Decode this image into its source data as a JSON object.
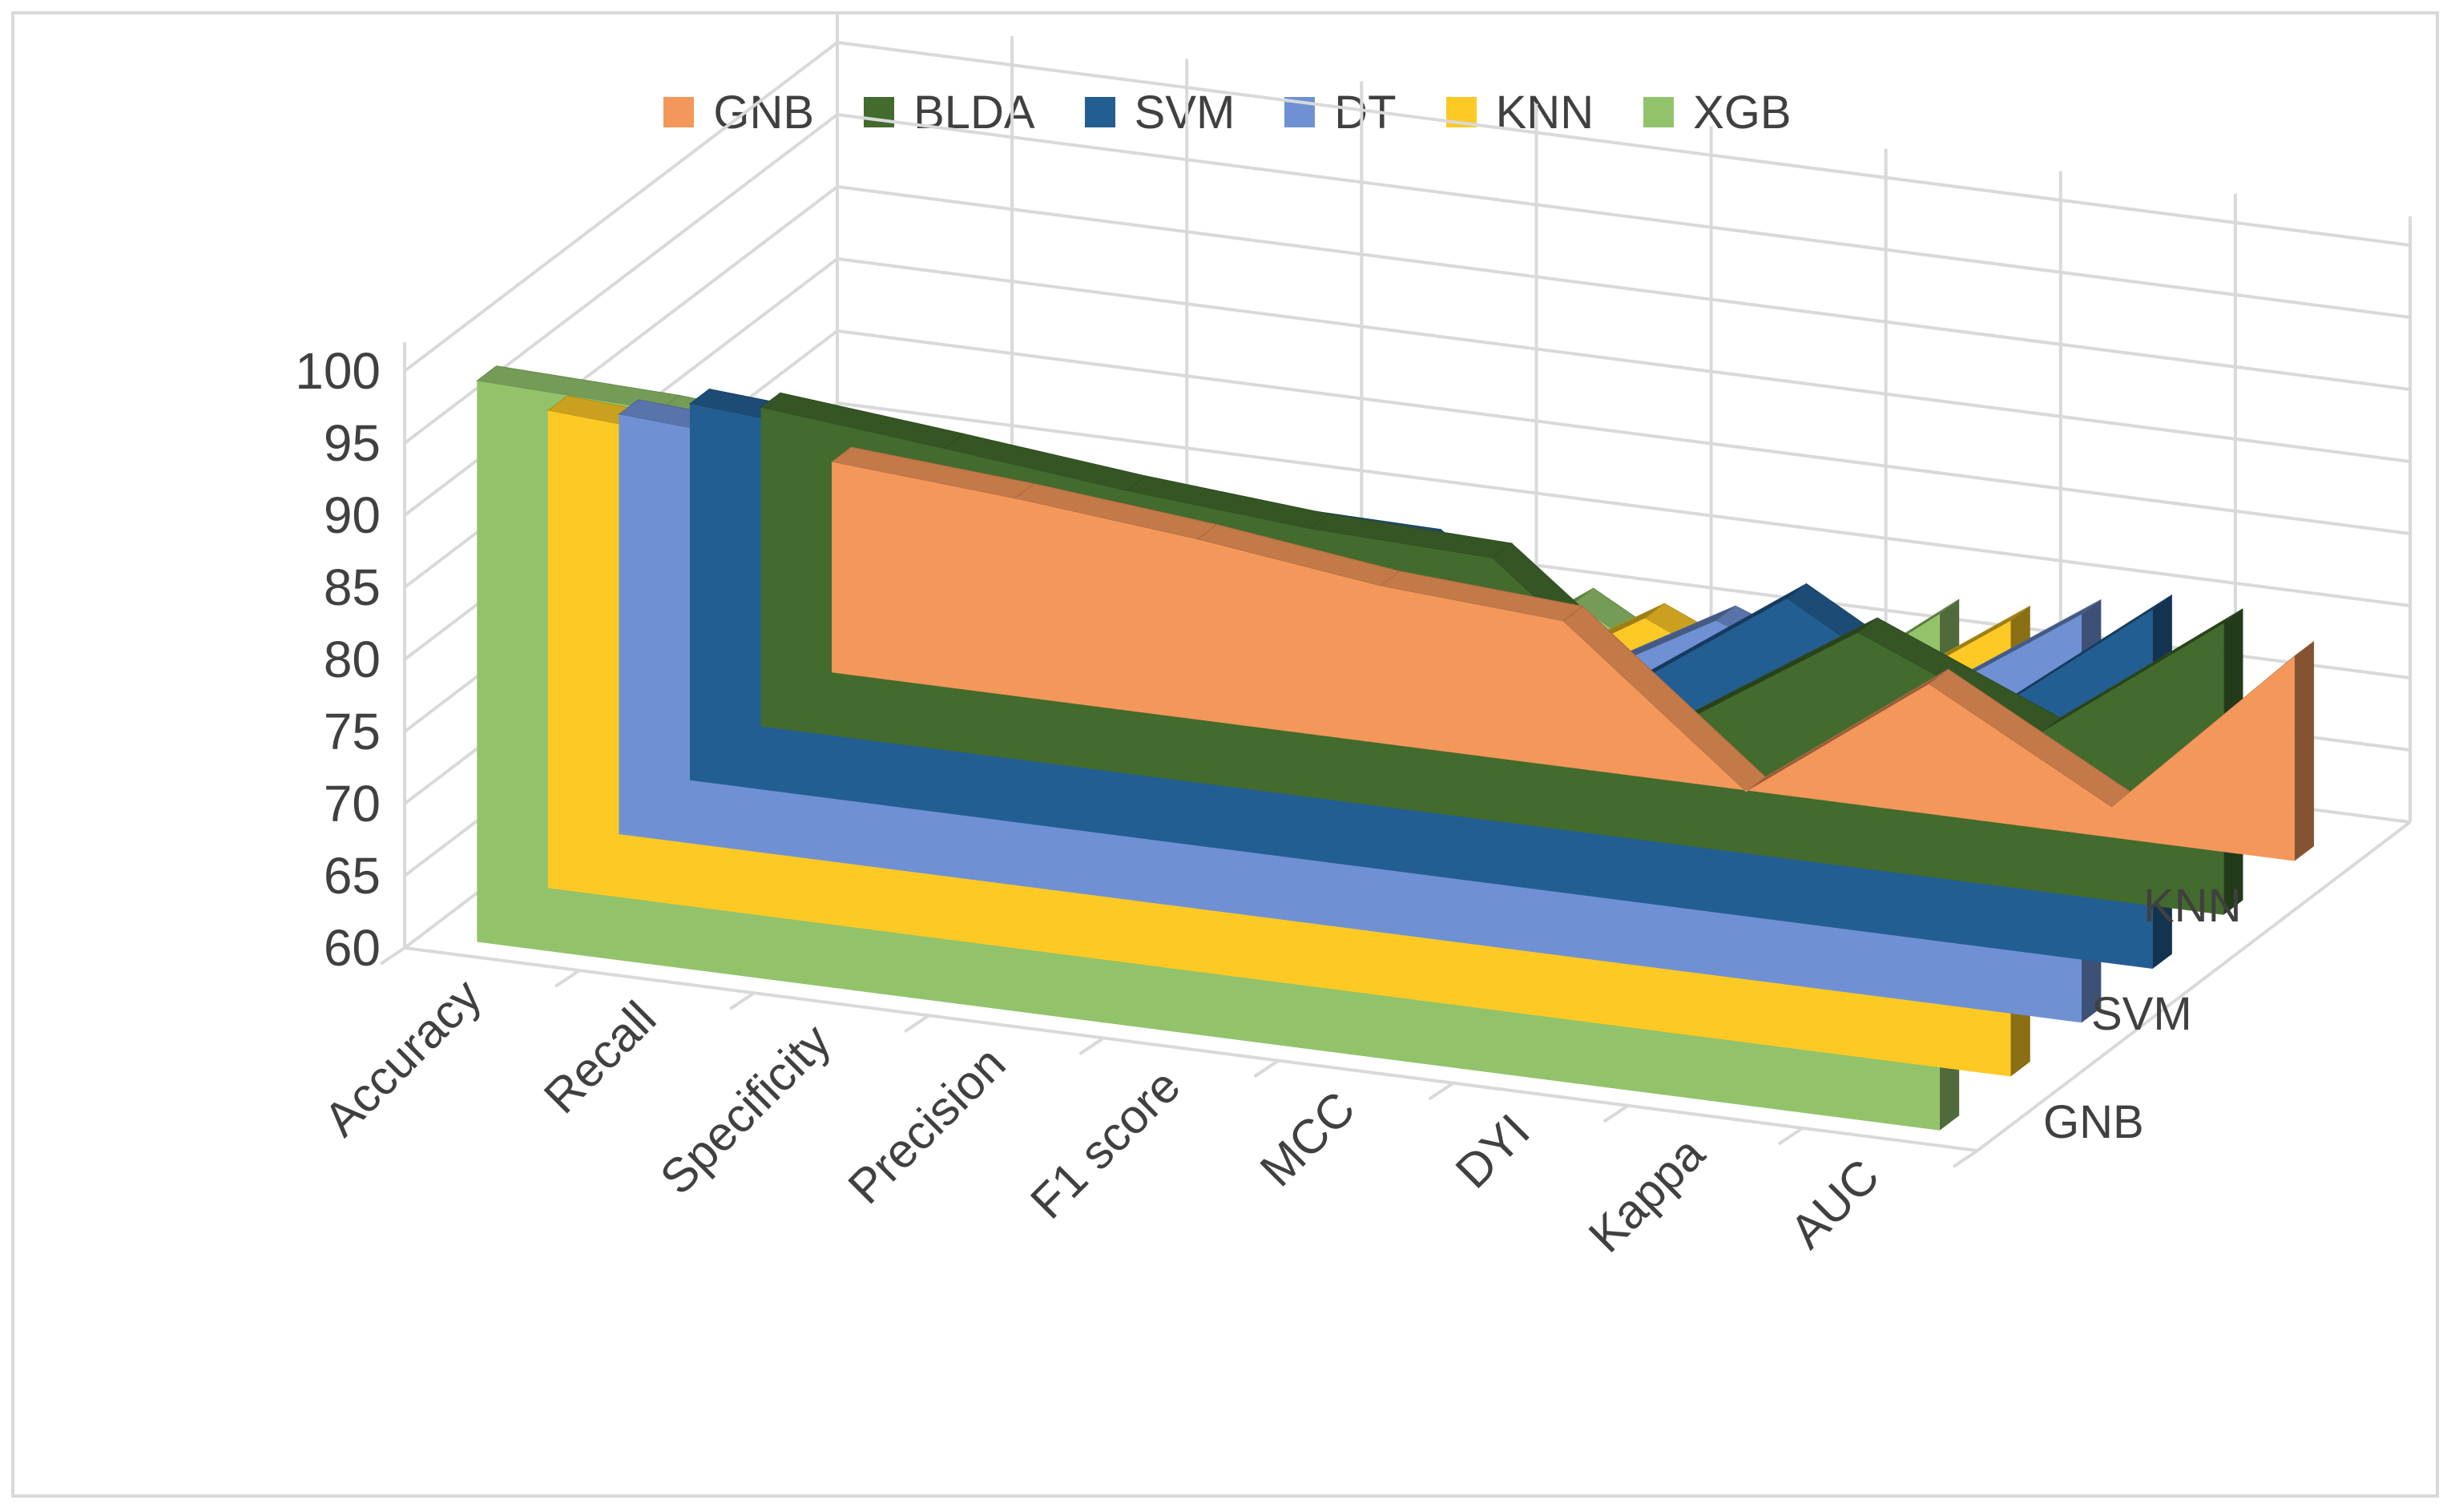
{
  "chart_data": {
    "type": "area",
    "subtype": "3d-area",
    "title": "",
    "categories": [
      "Accuracy",
      "Recall",
      "Specificity",
      "Precision",
      "F1 score",
      "MCC",
      "DYI",
      "Kappa",
      "AUC"
    ],
    "y_ticks": [
      "60",
      "65",
      "70",
      "75",
      "80",
      "85",
      "90",
      "95",
      "100"
    ],
    "ylim": [
      60,
      100
    ],
    "depth_axis_labels": [
      "GNB",
      "SVM",
      "KNN"
    ],
    "legend_position": "top",
    "series": [
      {
        "name": "GNB",
        "color": "#f4975a",
        "values": [
          74.6,
          73.7,
          72.5,
          70.9,
          70.1,
          59.9,
          69.0,
          62.1,
          74.2
        ]
      },
      {
        "name": "BLDA",
        "color": "#426b2d",
        "values": [
          82.1,
          80.9,
          79.6,
          78.6,
          78.2,
          68.2,
          76.3,
          71.0,
          80.2
        ]
      },
      {
        "name": "SVM",
        "color": "#235e92",
        "values": [
          86.1,
          85.2,
          84.3,
          83.1,
          82.9,
          73.7,
          82.4,
          75.2,
          84.9
        ]
      },
      {
        "name": "DT",
        "color": "#6f91d4",
        "values": [
          89.1,
          88.3,
          87.6,
          86.6,
          86.2,
          77.5,
          84.6,
          79.8,
          88.3
        ]
      },
      {
        "name": "KNN",
        "color": "#fdc925",
        "values": [
          93.1,
          92.3,
          91.5,
          90.8,
          90.1,
          80.9,
          88.5,
          82.9,
          91.6
        ]
      },
      {
        "name": "XGB",
        "color": "#92c36b",
        "values": [
          98.9,
          98.5,
          97.6,
          96.4,
          95.8,
          84.5,
          93.3,
          86.2,
          95.8
        ]
      }
    ]
  }
}
